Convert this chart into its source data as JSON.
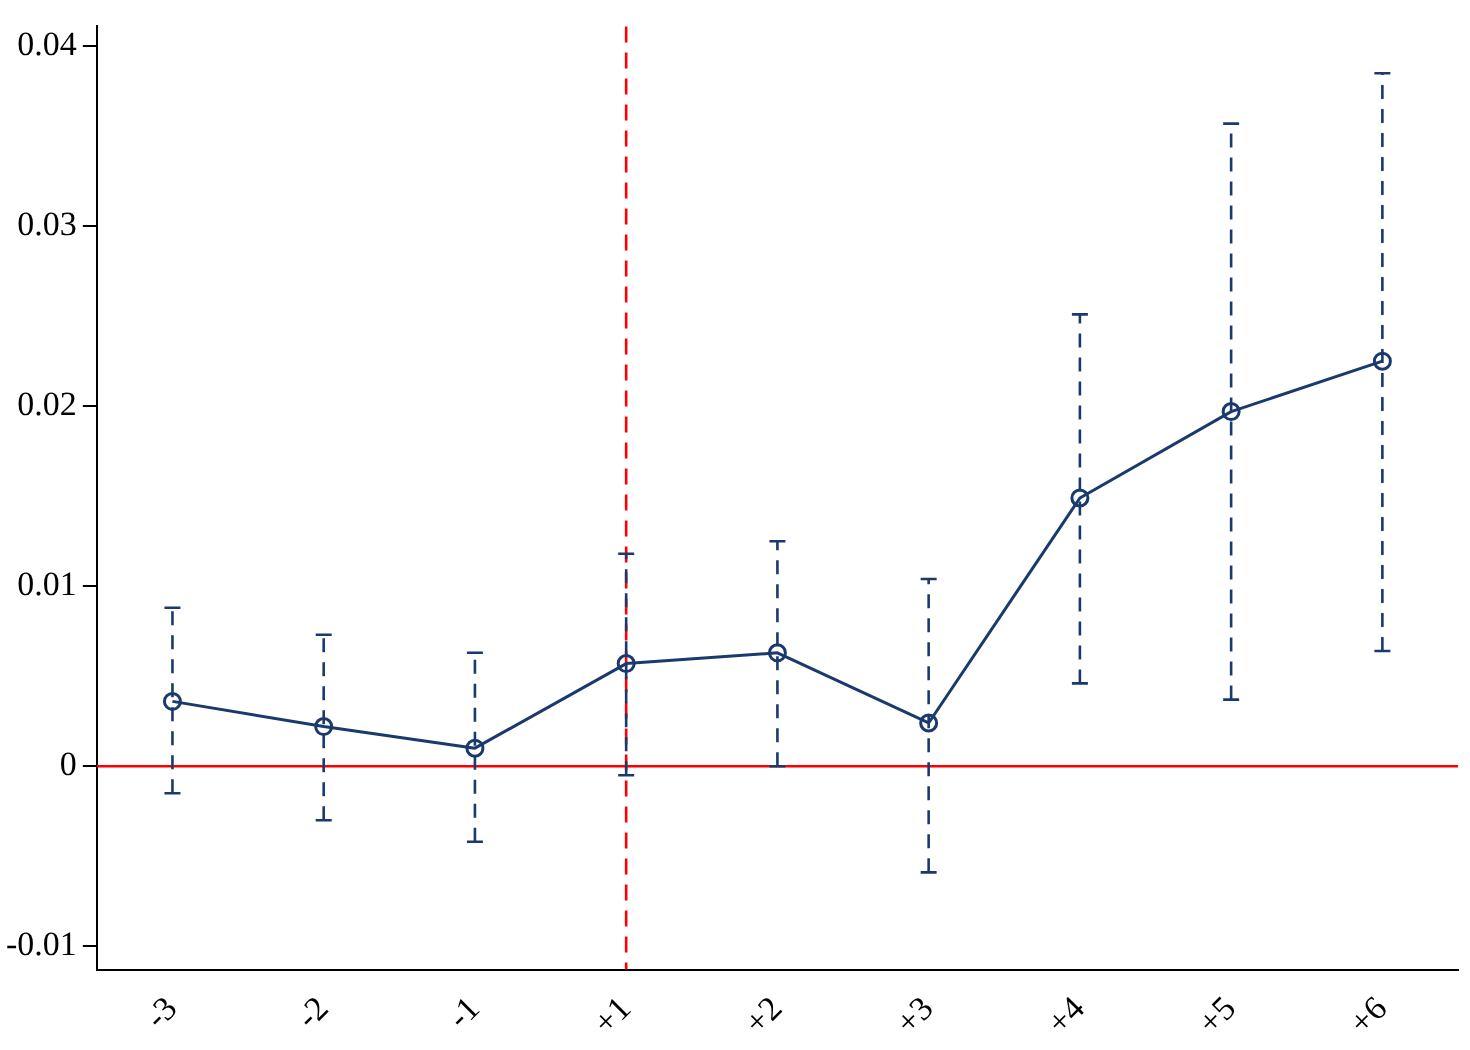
{
  "chart_data": {
    "type": "line",
    "categories": [
      "-3",
      "-2",
      "-1",
      "+1",
      "+2",
      "+3",
      "+4",
      "+5",
      "+6"
    ],
    "series": [
      {
        "color": "#1a3a6e",
        "values": [
          0.0036,
          0.0022,
          0.001,
          0.0057,
          0.0063,
          0.0024,
          0.0149,
          0.0197,
          0.0225
        ],
        "errors": [
          [
            -0.0015,
            0.0088
          ],
          [
            -0.003,
            0.0073
          ],
          [
            -0.0042,
            0.0063
          ],
          [
            -0.0005,
            0.0118
          ],
          [
            0,
            0.0125
          ],
          [
            -0.0059,
            0.0104
          ],
          [
            0.0046,
            0.0251
          ],
          [
            0.0037,
            0.0357
          ],
          [
            0.0064,
            0.0385
          ]
        ]
      }
    ],
    "ylim": [
      -0.0113,
      0.0411
    ],
    "yticks": [
      -0.01,
      0,
      0.01,
      0.02,
      0.03,
      0.04
    ],
    "grid": false,
    "legend": false,
    "marker": "circle",
    "line_style": "solid",
    "ref_lines": [
      {
        "axis": "y",
        "value": 0,
        "color": "#ff0000",
        "line_style": "solid"
      },
      {
        "axis": "x",
        "value": "+1",
        "color": "#ff0000",
        "line_style": "dashed"
      }
    ]
  }
}
